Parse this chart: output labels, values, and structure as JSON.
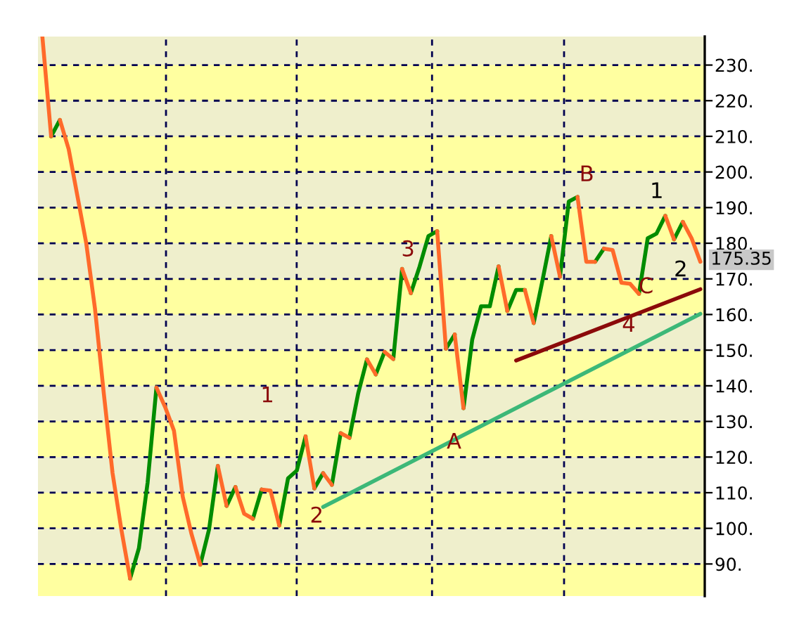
{
  "chart_data": {
    "type": "line",
    "categories": [
      null,
      null,
      null,
      null,
      null,
      null,
      null,
      null,
      null,
      null,
      null,
      null,
      null,
      null,
      null,
      null,
      null,
      null,
      null,
      null,
      null,
      null,
      null,
      null,
      null,
      null,
      null,
      null,
      null,
      null,
      null,
      null,
      null,
      null,
      null,
      null,
      null,
      null,
      null,
      null,
      null,
      null,
      null,
      null,
      null,
      null,
      null,
      null,
      null,
      null,
      null,
      null,
      null,
      null,
      null,
      null,
      null,
      null,
      null,
      null,
      null,
      null,
      null,
      null,
      null,
      null,
      null,
      null,
      null,
      null,
      null,
      null,
      null,
      null,
      null,
      null
    ],
    "ylim": [
      81,
      238
    ],
    "yticks": [
      {
        "value": 90,
        "label": "90."
      },
      {
        "value": 100,
        "label": "100."
      },
      {
        "value": 110,
        "label": "110."
      },
      {
        "value": 120,
        "label": "120."
      },
      {
        "value": 130,
        "label": "130."
      },
      {
        "value": 140,
        "label": "140."
      },
      {
        "value": 150,
        "label": "150."
      },
      {
        "value": 160,
        "label": "160."
      },
      {
        "value": 170,
        "label": "170."
      },
      {
        "value": 180,
        "label": "180."
      },
      {
        "value": 190,
        "label": "190."
      },
      {
        "value": 200,
        "label": "200."
      },
      {
        "value": 210,
        "label": "210."
      },
      {
        "value": 220,
        "label": "220."
      },
      {
        "value": 230,
        "label": "230."
      }
    ],
    "tick_labels": "y",
    "grid": true,
    "series": [
      {
        "color": "#008c00",
        "values": [
          null,
          210.0,
          214.6,
          null,
          null,
          null,
          null,
          null,
          null,
          null,
          null,
          null,
          null,
          null,
          null,
          null,
          null,
          null,
          89.8,
          99.7,
          117.5,
          null,
          null,
          null,
          102.7,
          110.9,
          null,
          null,
          null,
          null,
          null,
          111.2,
          115.5,
          null,
          null,
          125.4,
          137.9,
          147.4,
          null,
          null,
          147.5,
          172.8,
          null,
          null,
          null,
          null,
          150.4,
          154.4,
          null,
          null,
          null,
          null,
          null,
          161.0,
          166.9,
          166.9,
          null,
          null,
          null,
          170.6,
          191.7,
          193.0,
          null,
          null,
          null,
          null,
          null,
          null,
          165.8,
          181.4,
          182.7,
          187.7,
          null,
          null,
          null,
          null
        ]
      },
      {
        "color": "#008c00",
        "values": [
          null,
          null,
          null,
          null,
          null,
          null,
          null,
          null,
          null,
          null,
          85.9,
          94.4,
          112.9,
          139.5,
          null,
          null,
          null,
          null,
          null,
          null,
          null,
          106.3,
          111.6,
          null,
          null,
          null,
          null,
          100.8,
          114.0,
          116.2,
          125.8,
          null,
          null,
          112.2,
          126.7,
          null,
          null,
          null,
          143.2,
          149.5,
          null,
          null,
          166.0,
          173.5,
          182.0,
          183.4,
          null,
          null,
          133.7,
          153.0,
          162.3,
          162.3,
          173.5,
          null,
          null,
          null,
          157.6,
          169.5,
          182.0,
          null,
          null,
          null,
          null,
          174.8,
          178.5,
          null,
          null,
          null,
          null,
          null,
          null,
          null,
          181.1,
          186.0,
          null,
          null
        ]
      },
      {
        "color": "#ff6a2a",
        "values": [
          238,
          210.0,
          null,
          null,
          null,
          null,
          null,
          null,
          null,
          null,
          null,
          null,
          null,
          139.5,
          134.0,
          127.4,
          108.9,
          98.4,
          89.8,
          null,
          null,
          null,
          111.6,
          104.1,
          102.7,
          null,
          null,
          null,
          null,
          null,
          125.8,
          111.2,
          null,
          null,
          126.7,
          125.4,
          null,
          null,
          null,
          149.5,
          147.5,
          null,
          null,
          null,
          null,
          183.4,
          150.4,
          null,
          null,
          null,
          null,
          null,
          173.5,
          161.0,
          null,
          null,
          null,
          null,
          182.0,
          170.6,
          null,
          null,
          null,
          null,
          178.5,
          178.1,
          168.9,
          168.6,
          165.8,
          null,
          null,
          null,
          null,
          186.0,
          181.4,
          174.8
        ]
      },
      {
        "color": "#ff6a2a",
        "values": [
          null,
          null,
          214.6,
          206.4,
          193.2,
          180.0,
          161.6,
          137.9,
          115.5,
          99.7,
          85.9,
          null,
          null,
          null,
          null,
          null,
          null,
          null,
          null,
          null,
          117.5,
          106.3,
          null,
          null,
          null,
          110.9,
          110.6,
          100.8,
          null,
          null,
          null,
          null,
          115.5,
          112.2,
          null,
          null,
          null,
          147.4,
          143.2,
          null,
          null,
          172.8,
          166.0,
          null,
          null,
          null,
          null,
          154.4,
          133.7,
          null,
          null,
          null,
          null,
          null,
          null,
          166.9,
          157.6,
          null,
          null,
          null,
          null,
          193.0,
          174.8,
          174.8,
          null,
          null,
          null,
          null,
          null,
          null,
          null,
          187.7,
          181.1,
          null,
          null,
          null
        ]
      },
      {
        "values": [
          null,
          null,
          null,
          null,
          null,
          null,
          null,
          null,
          null,
          null,
          null,
          null,
          null,
          null,
          null,
          null,
          null,
          null,
          null,
          null,
          null,
          null,
          null,
          null,
          null,
          null,
          null,
          null,
          null,
          null,
          null,
          null,
          106.0,
          null,
          null,
          null,
          null,
          null,
          null,
          null,
          null,
          null,
          null,
          null,
          null,
          null,
          null,
          null,
          null,
          null,
          null,
          null,
          null,
          null,
          null,
          null,
          null,
          null,
          null,
          null,
          null,
          null,
          null,
          null,
          null,
          null,
          null,
          null,
          null,
          null,
          null,
          null,
          null,
          null,
          null,
          160.2
        ],
        "color": "#3cb878"
      },
      {
        "values": [
          null,
          null,
          null,
          null,
          null,
          null,
          null,
          null,
          null,
          null,
          null,
          null,
          null,
          null,
          null,
          null,
          null,
          null,
          null,
          null,
          null,
          null,
          null,
          null,
          null,
          null,
          null,
          null,
          null,
          null,
          null,
          null,
          null,
          null,
          null,
          null,
          null,
          null,
          null,
          null,
          null,
          null,
          null,
          null,
          null,
          null,
          null,
          null,
          null,
          null,
          null,
          null,
          null,
          null,
          147.1,
          null,
          null,
          null,
          null,
          null,
          null,
          null,
          null,
          null,
          null,
          null,
          null,
          null,
          null,
          null,
          null,
          null,
          null,
          null,
          null,
          167.1
        ],
        "color": "#8b0a0a"
      }
    ],
    "bands": [
      {
        "axis": "y",
        "from": 81,
        "to": 90,
        "color": "#ffffa0"
      },
      {
        "axis": "y",
        "from": 100,
        "to": 110,
        "color": "#ffffa0"
      },
      {
        "axis": "y",
        "from": 120,
        "to": 130,
        "color": "#ffffa0"
      },
      {
        "axis": "y",
        "from": 140,
        "to": 150,
        "color": "#ffffa0"
      },
      {
        "axis": "y",
        "from": 160,
        "to": 170,
        "color": "#ffffa0"
      },
      {
        "axis": "y",
        "from": 180,
        "to": 190,
        "color": "#ffffa0"
      },
      {
        "axis": "y",
        "from": 200,
        "to": 210,
        "color": "#ffffa0"
      },
      {
        "axis": "y",
        "from": 220,
        "to": 230,
        "color": "#ffffa0"
      }
    ],
    "annotations": [
      "1",
      "2",
      "3",
      "A",
      "B",
      "4",
      "C",
      "1",
      "2",
      "175.35"
    ]
  }
}
